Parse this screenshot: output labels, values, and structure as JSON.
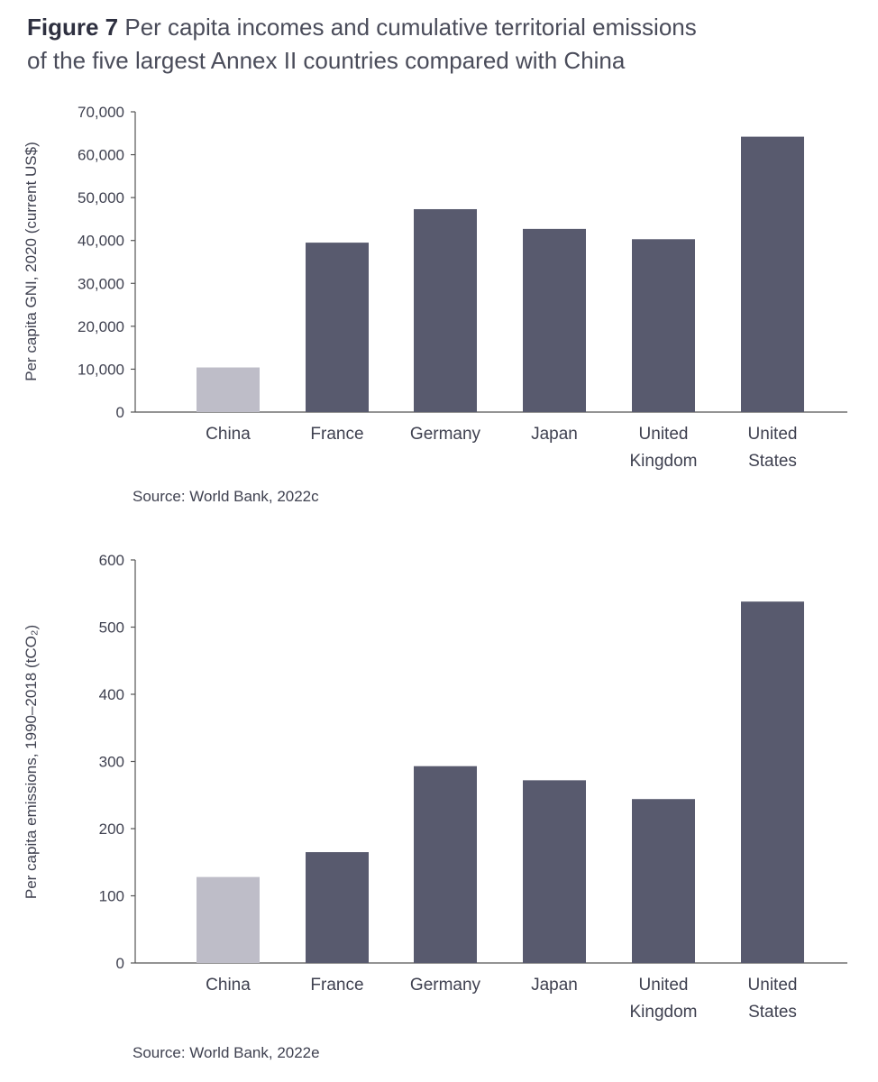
{
  "figure": {
    "label": "Figure 7",
    "title_line1": "Per capita incomes and cumulative territorial emissions",
    "title_line2": "of the five largest Annex II countries compared with China"
  },
  "colors": {
    "highlight": "#bebdc8",
    "main": "#585a6e",
    "axis": "#555555"
  },
  "chart_data": [
    {
      "type": "bar",
      "categories": [
        "China",
        "France",
        "Germany",
        "Japan",
        "United Kingdom",
        "United States"
      ],
      "category_lines": [
        [
          "China"
        ],
        [
          "France"
        ],
        [
          "Germany"
        ],
        [
          "Japan"
        ],
        [
          "United",
          "Kingdom"
        ],
        [
          "United",
          "States"
        ]
      ],
      "values": [
        10400,
        39500,
        47300,
        42700,
        40300,
        64200
      ],
      "ylabel": "Per capita GNI, 2020 (current US$)",
      "ylim": [
        0,
        70000
      ],
      "yticks": [
        0,
        10000,
        20000,
        30000,
        40000,
        50000,
        60000,
        70000
      ],
      "ytick_labels": [
        "0",
        "10,000",
        "20,000",
        "30,000",
        "40,000",
        "50,000",
        "60,000",
        "70,000"
      ],
      "highlight": "China",
      "source": "Source: World Bank, 2022c"
    },
    {
      "type": "bar",
      "categories": [
        "China",
        "France",
        "Germany",
        "Japan",
        "United Kingdom",
        "United States"
      ],
      "category_lines": [
        [
          "China"
        ],
        [
          "France"
        ],
        [
          "Germany"
        ],
        [
          "Japan"
        ],
        [
          "United",
          "Kingdom"
        ],
        [
          "United",
          "States"
        ]
      ],
      "values": [
        128,
        165,
        293,
        272,
        244,
        538
      ],
      "ylabel": "Per capita emissions, 1990–2018 (tCO₂)",
      "ylim": [
        0,
        600
      ],
      "yticks": [
        0,
        100,
        200,
        300,
        400,
        500,
        600
      ],
      "ytick_labels": [
        "0",
        "100",
        "200",
        "300",
        "400",
        "500",
        "600"
      ],
      "highlight": "China",
      "source": "Source: World Bank, 2022e"
    }
  ]
}
